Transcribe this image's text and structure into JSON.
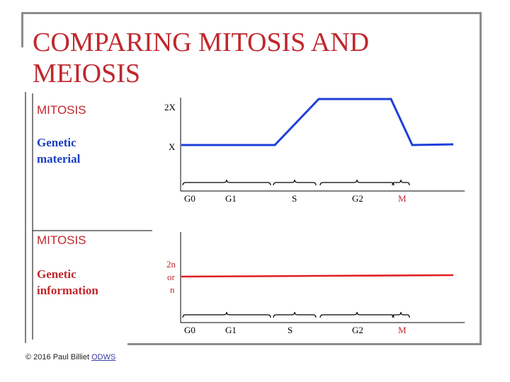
{
  "slide": {
    "title": "COMPARING MITOSIS AND MEIOSIS",
    "footer_text": "© 2016 Paul Billiet ",
    "footer_link": "ODWS"
  },
  "colors": {
    "title": "#c0272d",
    "panel_label": "#1a3fbf",
    "panel_label_bottom": "#c0272d",
    "line_top": "#1f3fd8",
    "line_bottom": "#e02020",
    "axis": "#000000"
  },
  "diagram": {
    "top_panel": {
      "heading": "MITOSIS",
      "label_line1": "Genetic",
      "label_line2": "material",
      "y_tick_high": "2X",
      "y_tick_low": "X",
      "phases": [
        "G0",
        "G1",
        "S",
        "G2",
        "M"
      ]
    },
    "bottom_panel": {
      "heading": "MITOSIS",
      "label_line1": "Genetic",
      "label_line2": "information",
      "y_tick_line1": "2n",
      "y_tick_line2": "or",
      "y_tick_line3": "n",
      "phases": [
        "G0",
        "G1",
        "S",
        "G2",
        "M"
      ]
    }
  }
}
